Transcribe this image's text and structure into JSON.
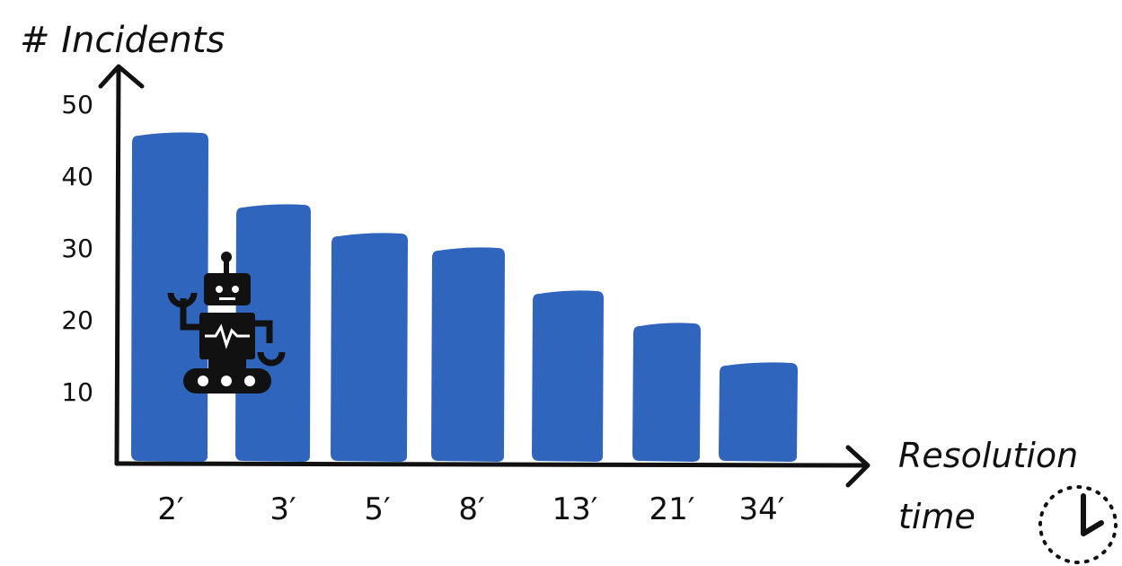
{
  "chart_data": {
    "type": "bar",
    "title": "",
    "ylabel": "# Incidents",
    "xlabel_line1": "Resolution",
    "xlabel_line2": "time",
    "ylim": [
      0,
      50
    ],
    "yticks": [
      10,
      20,
      30,
      40,
      50
    ],
    "categories": [
      "2′",
      "3′",
      "5′",
      "8′",
      "13′",
      "21′",
      "34′"
    ],
    "values": [
      46,
      36,
      32,
      30,
      24,
      19.5,
      14
    ],
    "bar_color": "#3065BD",
    "grid": false,
    "legend": "none"
  },
  "decorations": {
    "robot_icon": "robot-icon",
    "clock_icon": "clock-icon"
  }
}
